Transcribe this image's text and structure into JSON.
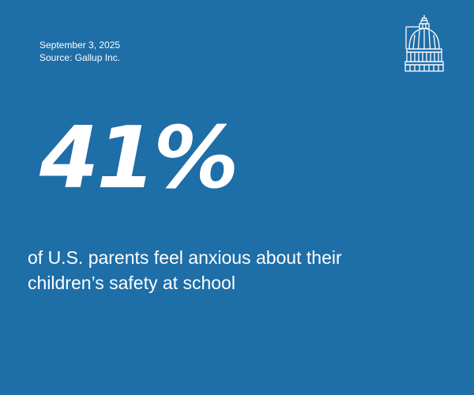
{
  "meta": {
    "date": "September 3, 2025",
    "source": "Source: Gallup Inc."
  },
  "stat": {
    "value": "41%"
  },
  "caption": {
    "line1": "of U.S. parents feel anxious about their",
    "line2": "children’s safety at school"
  },
  "logo": {
    "icon": "capitol-dome-icon"
  },
  "colors": {
    "background": "#1e6ea8",
    "text": "#ffffff"
  }
}
